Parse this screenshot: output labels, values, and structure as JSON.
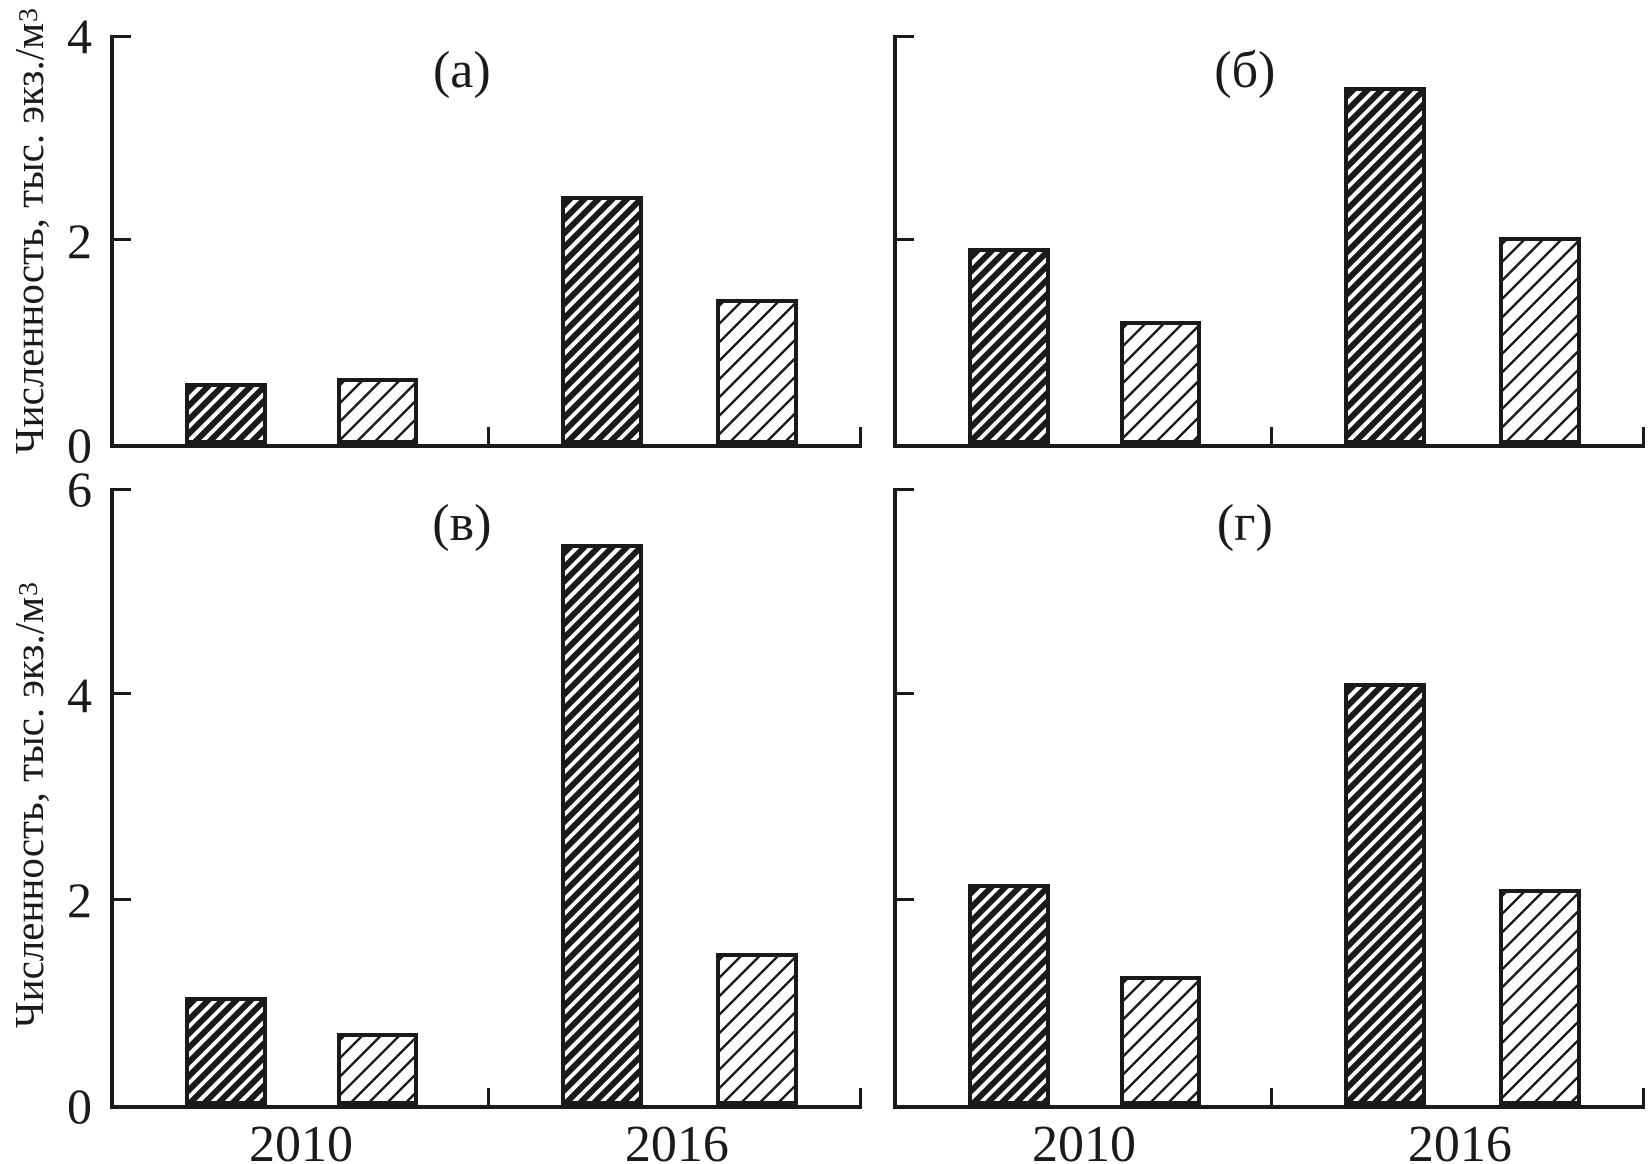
{
  "figure": {
    "y_axis_title_main": "Численность, тыс. экз./м",
    "y_axis_title_sup": "3"
  },
  "chart_data": [
    {
      "id": "a",
      "label": "(а)",
      "type": "bar",
      "row": 0,
      "col": 0,
      "ylim": [
        0,
        4
      ],
      "yticks": [
        0,
        2,
        4
      ],
      "show_ytick_labels": true,
      "show_x_labels": false,
      "grid": false,
      "legend": "none",
      "categories": [
        "2010",
        "2016"
      ],
      "series": [
        {
          "name": "dense-hatch",
          "values": [
            0.6,
            2.43
          ]
        },
        {
          "name": "light-hatch",
          "values": [
            0.65,
            1.42
          ]
        }
      ]
    },
    {
      "id": "b",
      "label": "(б)",
      "type": "bar",
      "row": 0,
      "col": 1,
      "ylim": [
        0,
        4
      ],
      "yticks": [
        0,
        2,
        4
      ],
      "show_ytick_labels": false,
      "show_x_labels": false,
      "grid": false,
      "legend": "none",
      "categories": [
        "2010",
        "2016"
      ],
      "series": [
        {
          "name": "dense-hatch",
          "values": [
            1.92,
            3.49
          ]
        },
        {
          "name": "light-hatch",
          "values": [
            1.2,
            2.02
          ]
        }
      ]
    },
    {
      "id": "v",
      "label": "(в)",
      "type": "bar",
      "row": 1,
      "col": 0,
      "ylim": [
        0,
        6
      ],
      "yticks": [
        0,
        2,
        4,
        6
      ],
      "show_ytick_labels": true,
      "show_x_labels": true,
      "grid": false,
      "legend": "none",
      "categories": [
        "2010",
        "2016"
      ],
      "series": [
        {
          "name": "dense-hatch",
          "values": [
            1.05,
            5.46
          ]
        },
        {
          "name": "light-hatch",
          "values": [
            0.7,
            1.48
          ]
        }
      ]
    },
    {
      "id": "g",
      "label": "(г)",
      "type": "bar",
      "row": 1,
      "col": 1,
      "ylim": [
        0,
        6
      ],
      "yticks": [
        0,
        2,
        4,
        6
      ],
      "show_ytick_labels": false,
      "show_x_labels": true,
      "grid": false,
      "legend": "none",
      "categories": [
        "2010",
        "2016"
      ],
      "series": [
        {
          "name": "dense-hatch",
          "values": [
            2.15,
            4.1
          ]
        },
        {
          "name": "light-hatch",
          "values": [
            1.25,
            2.1
          ]
        }
      ]
    }
  ]
}
